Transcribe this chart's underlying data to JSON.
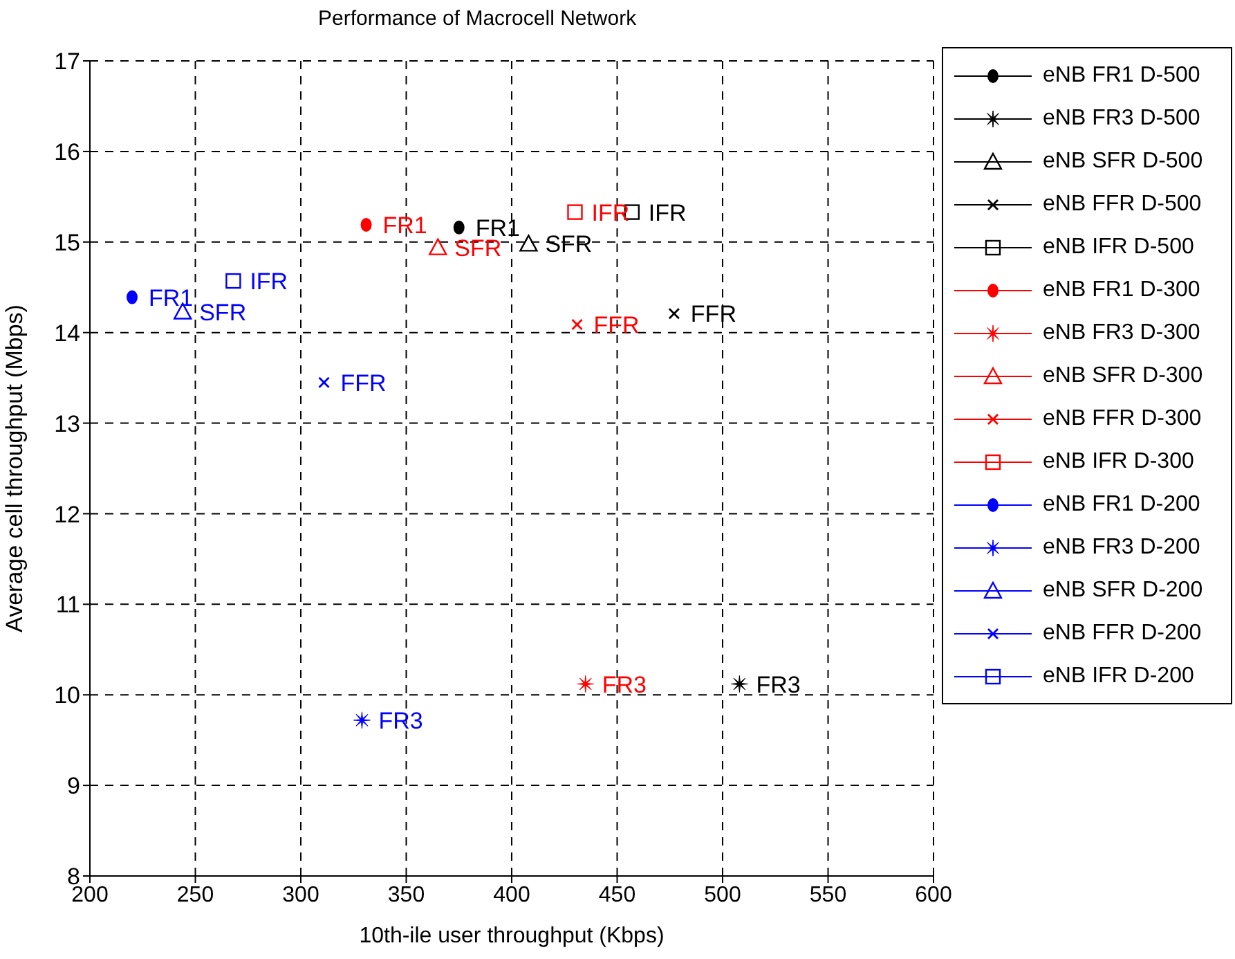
{
  "chart_data": {
    "type": "scatter",
    "title": "Performance of Macrocell Network",
    "xlabel": "10th-ile user throughput (Kbps)",
    "ylabel": "Average cell throughput (Mbps)",
    "xlim": [
      200,
      600
    ],
    "xticks": [
      200,
      250,
      300,
      350,
      400,
      450,
      500,
      550,
      600
    ],
    "ylim": [
      8,
      17
    ],
    "yticks": [
      8,
      9,
      10,
      11,
      12,
      13,
      14,
      15,
      16,
      17
    ],
    "grid": true,
    "legend": "right",
    "series": [
      {
        "name": "eNB FR1 D-500",
        "color": "#000000",
        "marker": "circle",
        "x": [
          375
        ],
        "values": [
          15.16
        ]
      },
      {
        "name": "eNB FR3 D-500",
        "color": "#000000",
        "marker": "star",
        "x": [
          508
        ],
        "values": [
          10.12
        ]
      },
      {
        "name": "eNB SFR D-500",
        "color": "#000000",
        "marker": "triangle",
        "x": [
          408
        ],
        "values": [
          14.98
        ]
      },
      {
        "name": "eNB FFR D-500",
        "color": "#000000",
        "marker": "cross",
        "x": [
          477
        ],
        "values": [
          14.21
        ]
      },
      {
        "name": "eNB IFR D-500",
        "color": "#000000",
        "marker": "square",
        "x": [
          457
        ],
        "values": [
          15.33
        ]
      },
      {
        "name": "eNB FR1 D-300",
        "color": "#ff0000",
        "marker": "circle",
        "x": [
          331
        ],
        "values": [
          15.19
        ]
      },
      {
        "name": "eNB FR3 D-300",
        "color": "#ff0000",
        "marker": "star",
        "x": [
          435
        ],
        "values": [
          10.12
        ]
      },
      {
        "name": "eNB SFR D-300",
        "color": "#ff0000",
        "marker": "triangle",
        "x": [
          365
        ],
        "values": [
          14.94
        ]
      },
      {
        "name": "eNB FFR D-300",
        "color": "#ff0000",
        "marker": "cross",
        "x": [
          431
        ],
        "values": [
          14.09
        ]
      },
      {
        "name": "eNB IFR D-300",
        "color": "#ff0000",
        "marker": "square",
        "x": [
          430
        ],
        "values": [
          15.33
        ]
      },
      {
        "name": "eNB FR1 D-200",
        "color": "#0000ff",
        "marker": "circle",
        "x": [
          220
        ],
        "values": [
          14.39
        ]
      },
      {
        "name": "eNB FR3 D-200",
        "color": "#0000ff",
        "marker": "star",
        "x": [
          329
        ],
        "values": [
          9.72
        ]
      },
      {
        "name": "eNB SFR D-200",
        "color": "#0000ff",
        "marker": "triangle",
        "x": [
          244
        ],
        "values": [
          14.23
        ]
      },
      {
        "name": "eNB FFR D-200",
        "color": "#0000ff",
        "marker": "cross",
        "x": [
          311
        ],
        "values": [
          13.45
        ]
      },
      {
        "name": "eNB IFR D-200",
        "color": "#0000ff",
        "marker": "square",
        "x": [
          268
        ],
        "values": [
          14.57
        ]
      }
    ],
    "annotations": [
      {
        "text": "FR1",
        "x": 375,
        "y": 15.16
      },
      {
        "text": "FR3",
        "x": 508,
        "y": 10.12
      },
      {
        "text": "SFR",
        "x": 408,
        "y": 14.98
      },
      {
        "text": "FFR",
        "x": 477,
        "y": 14.21
      },
      {
        "text": "IFR",
        "x": 457,
        "y": 15.33
      },
      {
        "text": "FR1",
        "x": 331,
        "y": 15.19
      },
      {
        "text": "FR3",
        "x": 435,
        "y": 10.12
      },
      {
        "text": "SFR",
        "x": 365,
        "y": 14.94
      },
      {
        "text": "FFR",
        "x": 431,
        "y": 14.09
      },
      {
        "text": "IFR",
        "x": 430,
        "y": 15.33
      },
      {
        "text": "FR1",
        "x": 220,
        "y": 14.39
      },
      {
        "text": "FR3",
        "x": 329,
        "y": 9.72
      },
      {
        "text": "SFR",
        "x": 244,
        "y": 14.23
      },
      {
        "text": "FFR",
        "x": 311,
        "y": 13.45
      },
      {
        "text": "IFR",
        "x": 268,
        "y": 14.57
      }
    ]
  }
}
